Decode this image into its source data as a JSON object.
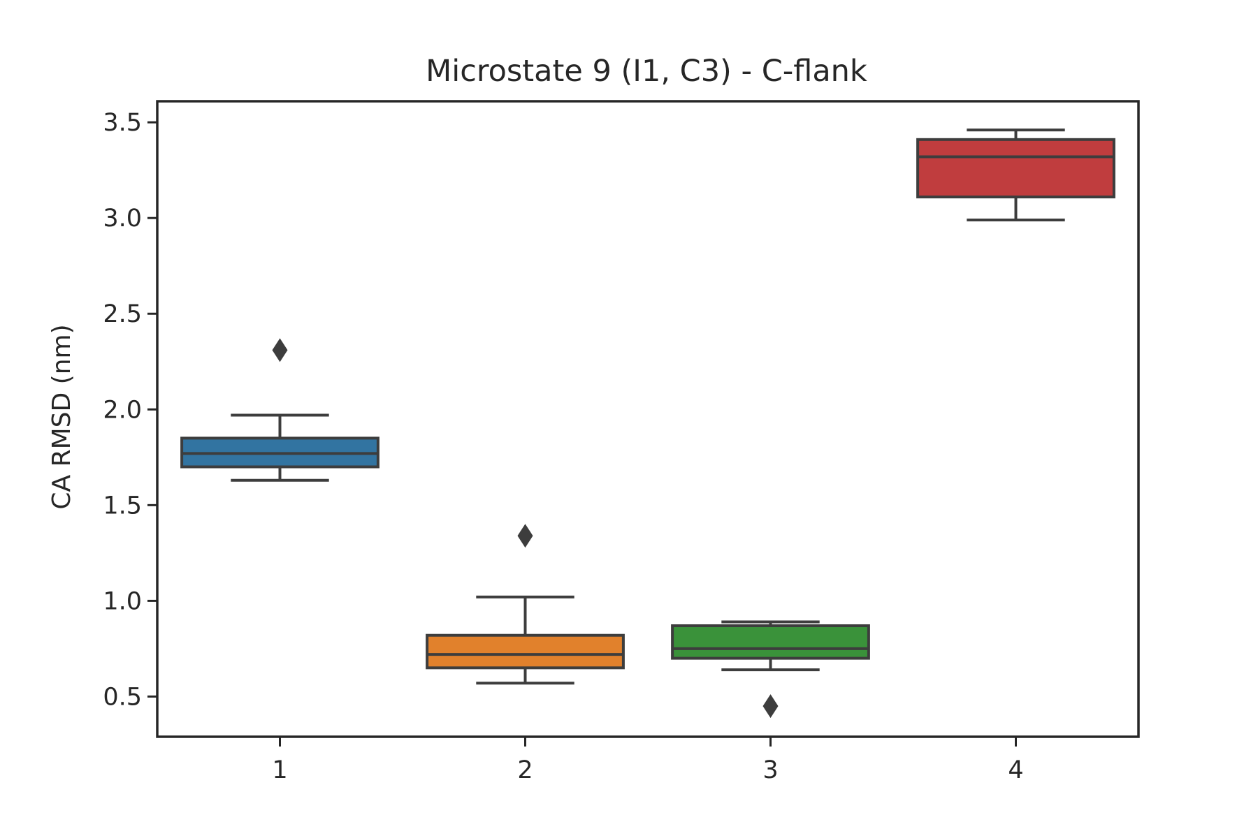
{
  "chart_data": {
    "type": "box",
    "title": "Microstate 9 (I1, C3) - C-flank",
    "xlabel": "",
    "ylabel": "CA RMSD (nm)",
    "categories": [
      "1",
      "2",
      "3",
      "4"
    ],
    "ylim": [
      0.29,
      3.61
    ],
    "yticks": [
      0.5,
      1.0,
      1.5,
      2.0,
      2.5,
      3.0,
      3.5
    ],
    "ytick_labels": [
      "0.5",
      "1.0",
      "1.5",
      "2.0",
      "2.5",
      "3.0",
      "3.5"
    ],
    "grid": false,
    "edge_color": "#3d3d3d",
    "series": [
      {
        "category": "1",
        "color": "#3274a1",
        "whisker_low": 1.63,
        "q1": 1.7,
        "median": 1.77,
        "q3": 1.85,
        "whisker_high": 1.97,
        "outliers": [
          2.31
        ]
      },
      {
        "category": "2",
        "color": "#e1812c",
        "whisker_low": 0.57,
        "q1": 0.65,
        "median": 0.72,
        "q3": 0.82,
        "whisker_high": 1.02,
        "outliers": [
          1.34
        ]
      },
      {
        "category": "3",
        "color": "#3a923a",
        "whisker_low": 0.64,
        "q1": 0.7,
        "median": 0.75,
        "q3": 0.87,
        "whisker_high": 0.89,
        "outliers": [
          0.45
        ]
      },
      {
        "category": "4",
        "color": "#c03d3e",
        "whisker_low": 2.99,
        "q1": 3.11,
        "median": 3.32,
        "q3": 3.41,
        "whisker_high": 3.46,
        "outliers": []
      }
    ]
  }
}
